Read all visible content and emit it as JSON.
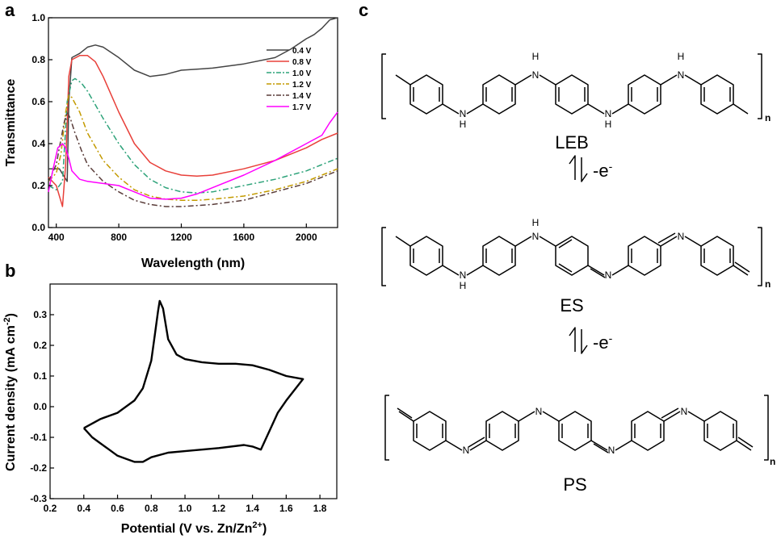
{
  "panels": {
    "a": {
      "letter": "a"
    },
    "b": {
      "letter": "b"
    },
    "c": {
      "letter": "c"
    }
  },
  "chart_data": [
    {
      "type": "line",
      "panel": "a",
      "xlabel": "Wavelength (nm)",
      "ylabel": "Transmittance",
      "xlim": [
        350,
        2200
      ],
      "ylim": [
        0.0,
        1.0
      ],
      "xticks": [
        400,
        800,
        1200,
        1600,
        2000
      ],
      "yticks": [
        0.0,
        0.2,
        0.4,
        0.6,
        0.8,
        1.0
      ],
      "legend_position": "top-right",
      "grid": false,
      "series": [
        {
          "name": "0.4 V",
          "color": "#444444",
          "dash": "solid",
          "x": [
            350,
            420,
            470,
            480,
            500,
            550,
            600,
            650,
            700,
            800,
            900,
            1000,
            1100,
            1200,
            1400,
            1600,
            1800,
            1900,
            2000,
            2050,
            2100,
            2150,
            2200
          ],
          "y": [
            0.28,
            0.28,
            0.22,
            0.6,
            0.81,
            0.83,
            0.86,
            0.87,
            0.86,
            0.81,
            0.75,
            0.72,
            0.73,
            0.75,
            0.76,
            0.78,
            0.81,
            0.85,
            0.9,
            0.92,
            0.95,
            0.99,
            1.0
          ]
        },
        {
          "name": "0.8 V",
          "color": "#e8403a",
          "dash": "solid",
          "x": [
            350,
            400,
            440,
            460,
            480,
            500,
            550,
            600,
            650,
            700,
            800,
            900,
            1000,
            1100,
            1200,
            1300,
            1400,
            1600,
            1800,
            2000,
            2100,
            2200
          ],
          "y": [
            0.24,
            0.2,
            0.1,
            0.3,
            0.72,
            0.8,
            0.82,
            0.82,
            0.79,
            0.72,
            0.55,
            0.4,
            0.31,
            0.27,
            0.25,
            0.245,
            0.25,
            0.28,
            0.32,
            0.38,
            0.42,
            0.45
          ]
        },
        {
          "name": "1.0 V",
          "color": "#2ea37a",
          "dash": "dashdot",
          "x": [
            350,
            400,
            440,
            470,
            500,
            520,
            560,
            600,
            700,
            800,
            900,
            1000,
            1100,
            1200,
            1300,
            1400,
            1600,
            1800,
            2000,
            2100,
            2200
          ],
          "y": [
            0.2,
            0.18,
            0.22,
            0.6,
            0.7,
            0.71,
            0.69,
            0.65,
            0.52,
            0.4,
            0.3,
            0.23,
            0.19,
            0.17,
            0.165,
            0.17,
            0.2,
            0.23,
            0.27,
            0.3,
            0.33
          ]
        },
        {
          "name": "1.2 V",
          "color": "#c39a00",
          "dash": "dashdot",
          "x": [
            350,
            400,
            430,
            460,
            480,
            500,
            550,
            600,
            700,
            800,
            900,
            1000,
            1100,
            1200,
            1300,
            1400,
            1600,
            1800,
            2000,
            2100,
            2200
          ],
          "y": [
            0.22,
            0.26,
            0.35,
            0.55,
            0.63,
            0.62,
            0.55,
            0.45,
            0.32,
            0.24,
            0.18,
            0.15,
            0.135,
            0.13,
            0.13,
            0.135,
            0.15,
            0.18,
            0.22,
            0.25,
            0.28
          ]
        },
        {
          "name": "1.4 V",
          "color": "#5a3d3a",
          "dash": "dashdot",
          "x": [
            350,
            400,
            420,
            450,
            470,
            490,
            520,
            560,
            600,
            700,
            800,
            900,
            1000,
            1100,
            1200,
            1300,
            1400,
            1600,
            1800,
            2000,
            2100,
            2200
          ],
          "y": [
            0.22,
            0.3,
            0.38,
            0.5,
            0.55,
            0.52,
            0.45,
            0.37,
            0.3,
            0.22,
            0.17,
            0.13,
            0.11,
            0.1,
            0.1,
            0.105,
            0.11,
            0.13,
            0.17,
            0.21,
            0.24,
            0.27
          ]
        },
        {
          "name": "1.7 V",
          "color": "#ff00ff",
          "dash": "solid",
          "x": [
            350,
            380,
            410,
            440,
            460,
            480,
            500,
            550,
            600,
            700,
            800,
            900,
            1000,
            1100,
            1200,
            1300,
            1400,
            1600,
            1800,
            2000,
            2100,
            2150,
            2200
          ],
          "y": [
            0.17,
            0.28,
            0.38,
            0.4,
            0.38,
            0.33,
            0.27,
            0.23,
            0.22,
            0.21,
            0.2,
            0.17,
            0.14,
            0.135,
            0.14,
            0.16,
            0.19,
            0.25,
            0.32,
            0.4,
            0.44,
            0.5,
            0.55
          ]
        }
      ]
    },
    {
      "type": "line",
      "panel": "b",
      "xlabel": "Potential (V vs. Zn/Zn2+)",
      "xlabel_main": "Potential (V vs. Zn/Zn",
      "xlabel_sup": "2+",
      "xlabel_end": ")",
      "ylabel": "Current density (mA cm-2)",
      "ylabel_main": "Current density (mA cm",
      "ylabel_sup": "-2",
      "ylabel_end": ")",
      "xlim": [
        0.2,
        1.9
      ],
      "ylim": [
        -0.3,
        0.4
      ],
      "xticks": [
        0.2,
        0.4,
        0.6,
        0.8,
        1.0,
        1.2,
        1.4,
        1.6,
        1.8
      ],
      "yticks": [
        -0.3,
        -0.2,
        -0.1,
        0.0,
        0.1,
        0.2,
        0.3
      ],
      "grid": false,
      "series": [
        {
          "color": "#000000",
          "x": [
            0.4,
            0.5,
            0.6,
            0.7,
            0.75,
            0.8,
            0.82,
            0.84,
            0.85,
            0.87,
            0.9,
            0.95,
            1.0,
            1.1,
            1.2,
            1.3,
            1.4,
            1.5,
            1.6,
            1.7,
            1.6,
            1.55,
            1.5,
            1.45,
            1.4,
            1.35,
            1.2,
            1.1,
            1.0,
            0.9,
            0.8,
            0.75,
            0.7,
            0.65,
            0.6,
            0.55,
            0.5,
            0.45,
            0.4
          ],
          "y": [
            -0.07,
            -0.04,
            -0.02,
            0.02,
            0.06,
            0.15,
            0.23,
            0.31,
            0.345,
            0.32,
            0.22,
            0.17,
            0.155,
            0.145,
            0.14,
            0.14,
            0.135,
            0.12,
            0.1,
            0.09,
            0.02,
            -0.02,
            -0.08,
            -0.14,
            -0.13,
            -0.125,
            -0.135,
            -0.14,
            -0.145,
            -0.15,
            -0.165,
            -0.18,
            -0.18,
            -0.17,
            -0.16,
            -0.14,
            -0.12,
            -0.1,
            -0.07
          ]
        }
      ]
    }
  ],
  "structures": {
    "leb": {
      "label": "LEB",
      "repeat": "n",
      "atoms": [
        "H",
        "H",
        "H",
        "H",
        "N",
        "N",
        "N",
        "N"
      ]
    },
    "es": {
      "label": "ES",
      "repeat": "n",
      "atoms": [
        "H",
        "H",
        "N",
        "N",
        "N",
        "N"
      ]
    },
    "ps": {
      "label": "PS",
      "repeat": "n",
      "atoms": [
        "N",
        "N",
        "N",
        "N"
      ]
    },
    "arrow1": {
      "label": "-e",
      "sup": "-"
    },
    "arrow2": {
      "label": "-e",
      "sup": "-"
    }
  }
}
